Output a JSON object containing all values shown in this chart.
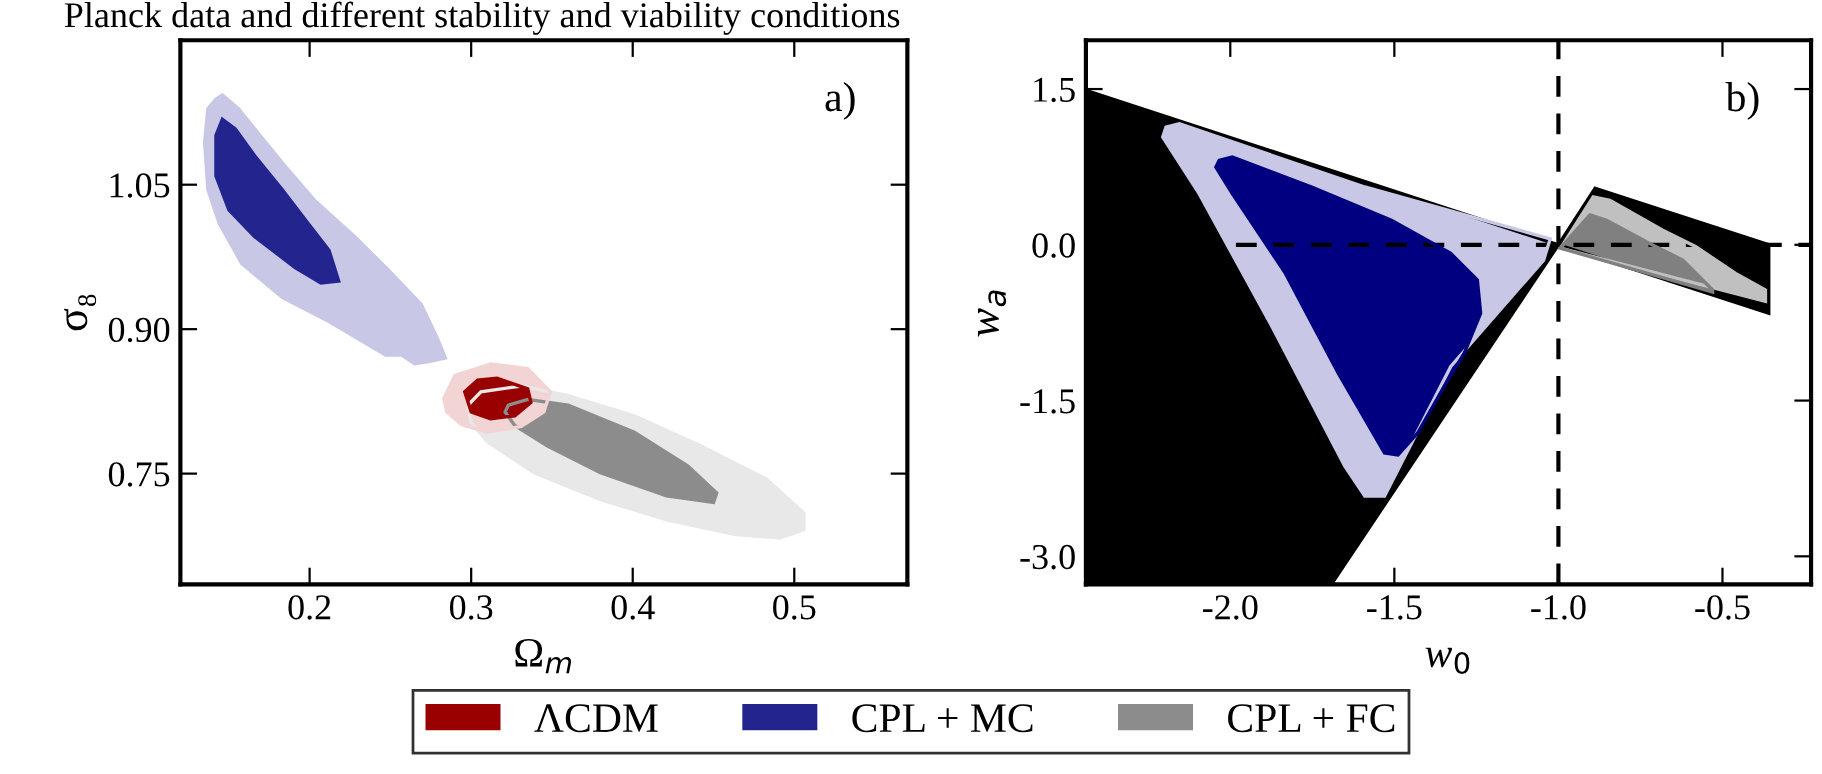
{
  "chart_data": [
    {
      "type": "area",
      "title": "Planck data and different stability and viability conditions",
      "xlabel": "Ω$_{m}$",
      "ylabel": "σ₈",
      "annotations": [
        "a)"
      ],
      "legend": "bottom",
      "grid": false,
      "xlim": [
        0.12,
        0.57
      ],
      "ylim": [
        0.635,
        1.2
      ],
      "xticks": [
        0.2,
        0.3,
        0.4,
        0.5
      ],
      "yticks": [
        0.75,
        {
          "value": 0.9,
          "label": "0.90"
        },
        1.05
      ],
      "series": [
        {
          "color": "#c8c8e6",
          "x": [
            0.146,
            0.156,
            0.166,
            0.183,
            0.203,
            0.228,
            0.249,
            0.269,
            0.279,
            0.284,
            0.273,
            0.265,
            0.257,
            0.247,
            0.236,
            0.212,
            0.183,
            0.158,
            0.144,
            0.137,
            0.135,
            0.137,
            0.142
          ],
          "values": [
            1.143,
            1.129,
            1.108,
            1.073,
            1.034,
            0.996,
            0.961,
            0.926,
            0.891,
            0.87,
            0.866,
            0.864,
            0.873,
            0.873,
            0.884,
            0.908,
            0.933,
            0.968,
            1.01,
            1.045,
            1.094,
            1.129,
            1.139
          ]
        },
        {
          "name": "CPL + MC",
          "color": "#24248f",
          "x": [
            0.146,
            0.154,
            0.166,
            0.183,
            0.199,
            0.212,
            0.218,
            0.207,
            0.191,
            0.166,
            0.15,
            0.142,
            0.142
          ],
          "values": [
            1.118,
            1.108,
            1.08,
            1.045,
            1.01,
            0.982,
            0.95,
            0.948,
            0.964,
            0.996,
            1.024,
            1.059,
            1.101
          ]
        },
        {
          "color": "#e8e8e8",
          "x": [
            0.298,
            0.306,
            0.331,
            0.36,
            0.401,
            0.442,
            0.483,
            0.506,
            0.506,
            0.491,
            0.463,
            0.421,
            0.38,
            0.339,
            0.31,
            0.3
          ],
          "values": [
            0.821,
            0.835,
            0.841,
            0.831,
            0.81,
            0.779,
            0.744,
            0.709,
            0.692,
            0.683,
            0.687,
            0.702,
            0.723,
            0.751,
            0.783,
            0.803
          ]
        },
        {
          "name": "CPL + FC",
          "color": "#8c8c8c",
          "x": [
            0.323,
            0.335,
            0.36,
            0.401,
            0.434,
            0.452,
            0.45,
            0.421,
            0.38,
            0.347,
            0.327,
            0.321
          ],
          "values": [
            0.821,
            0.827,
            0.821,
            0.793,
            0.758,
            0.73,
            0.72,
            0.727,
            0.751,
            0.779,
            0.8,
            0.814
          ]
        },
        {
          "color": "#f2d4d4",
          "x": [
            0.283,
            0.29,
            0.312,
            0.335,
            0.349,
            0.345,
            0.331,
            0.31,
            0.294,
            0.285
          ],
          "values": [
            0.828,
            0.852,
            0.864,
            0.859,
            0.835,
            0.814,
            0.799,
            0.793,
            0.801,
            0.814
          ]
        },
        {
          "name": "ΛCDM",
          "color": "#990000",
          "x": [
            0.296,
            0.304,
            0.316,
            0.335,
            0.337,
            0.327,
            0.312,
            0.3
          ],
          "values": [
            0.835,
            0.847,
            0.849,
            0.838,
            0.824,
            0.81,
            0.807,
            0.814
          ]
        }
      ]
    },
    {
      "type": "area",
      "xlabel": "w$_{0}$",
      "ylabel": "w$_{a}$",
      "annotations": [
        "b)"
      ],
      "grid": false,
      "xlim": [
        -2.44,
        -0.23
      ],
      "ylim": [
        -3.27,
        1.97
      ],
      "xticks": [
        {
          "value": -2.0,
          "label": "-2.0"
        },
        -1.5,
        {
          "value": -1.0,
          "label": "-1.0"
        },
        -0.5
      ],
      "yticks": [
        1.5,
        {
          "value": 0.0,
          "label": "0.0"
        },
        -1.5,
        {
          "value": -3.0,
          "label": "-3.0"
        }
      ],
      "ref_lines": [
        {
          "axis": "x",
          "value": -1.0,
          "color": "#000000",
          "line_style": "dashed"
        },
        {
          "axis": "y",
          "value": 0.0,
          "color": "#000000",
          "line_style": "dashed"
        }
      ],
      "series": [
        {
          "color": "#000000",
          "x": [
            -2.438,
            -1.0,
            -1.691,
            -2.438
          ],
          "values": [
            1.485,
            0.0,
            -3.265,
            -3.265
          ]
        },
        {
          "color": "#000000",
          "x": [
            -0.888,
            -0.359,
            -0.359,
            -1.0
          ],
          "values": [
            0.544,
            0.0,
            -0.659,
            0.0
          ]
        },
        {
          "color": "#c0c0c0",
          "x": [
            -0.894,
            -0.843,
            -0.682,
            -0.581,
            -0.46,
            -0.369,
            -0.369,
            -0.994,
            -0.984
          ],
          "values": [
            0.461,
            0.429,
            0.141,
            -0.019,
            -0.275,
            -0.435,
            -0.544,
            -0.032,
            0.013
          ]
        },
        {
          "color": "#808080",
          "x": [
            -0.904,
            -0.853,
            -0.722,
            -0.621,
            -0.53,
            -0.53,
            -0.994,
            -0.964
          ],
          "values": [
            0.288,
            0.237,
            0.013,
            -0.147,
            -0.435,
            -0.455,
            -0.032,
            0.077
          ]
        },
        {
          "color": "#c8c8e6",
          "x": [
            -2.196,
            -2.155,
            -1.59,
            -1.025,
            -1.045,
            -1.328,
            -1.53,
            -1.59,
            -1.651,
            -1.873,
            -2.095,
            -2.206
          ],
          "values": [
            1.133,
            1.165,
            0.557,
            0.058,
            -0.147,
            -1.172,
            -2.42,
            -2.42,
            -2.132,
            -0.787,
            0.493,
            1.037
          ]
        },
        {
          "color": "#000080",
          "x": [
            -2.034,
            -1.994,
            -1.752,
            -1.509,
            -1.328,
            -1.247,
            -1.237,
            -1.287,
            -1.348,
            -1.429,
            -1.489,
            -1.53,
            -1.671,
            -1.832,
            -1.994,
            -2.044
          ],
          "values": [
            0.813,
            0.845,
            0.557,
            0.237,
            -0.083,
            -0.339,
            -0.659,
            -1.044,
            -1.364,
            -1.812,
            -2.023,
            -2.004,
            -1.236,
            -0.275,
            0.493,
            0.749
          ]
        }
      ]
    }
  ]
}
